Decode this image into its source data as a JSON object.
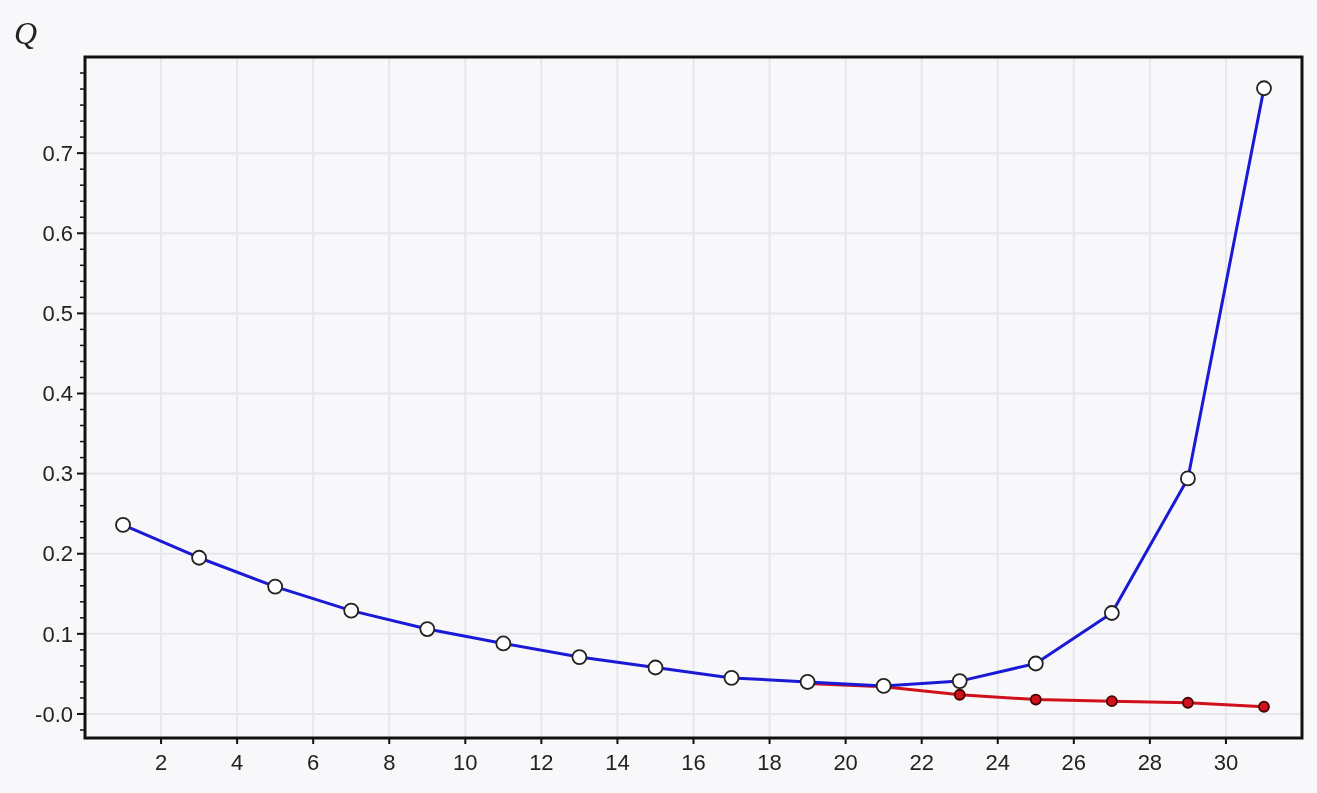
{
  "chart_data": {
    "type": "line",
    "ylabel": "Q",
    "xlim": [
      0,
      32
    ],
    "ylim": [
      -0.03,
      0.82
    ],
    "xticks": [
      2,
      4,
      6,
      8,
      10,
      12,
      14,
      16,
      18,
      20,
      22,
      24,
      26,
      28,
      30
    ],
    "yticks": [
      {
        "value": 0,
        "label": "-0.0"
      },
      0.1,
      0.2,
      0.3,
      0.4,
      0.5,
      0.6,
      0.7,
      {
        "value": -0.02,
        "label": null
      },
      {
        "value": 0.02,
        "label": null
      },
      {
        "value": 0.04,
        "label": null
      },
      {
        "value": 0.06,
        "label": null
      },
      {
        "value": 0.08,
        "label": null
      },
      {
        "value": 0.12,
        "label": null
      },
      {
        "value": 0.14,
        "label": null
      },
      {
        "value": 0.16,
        "label": null
      },
      {
        "value": 0.18,
        "label": null
      },
      {
        "value": 0.22,
        "label": null
      },
      {
        "value": 0.24,
        "label": null
      },
      {
        "value": 0.26,
        "label": null
      },
      {
        "value": 0.28,
        "label": null
      },
      {
        "value": 0.32,
        "label": null
      },
      {
        "value": 0.34,
        "label": null
      },
      {
        "value": 0.36,
        "label": null
      },
      {
        "value": 0.38,
        "label": null
      },
      {
        "value": 0.42,
        "label": null
      },
      {
        "value": 0.44,
        "label": null
      },
      {
        "value": 0.46,
        "label": null
      },
      {
        "value": 0.48,
        "label": null
      },
      {
        "value": 0.52,
        "label": null
      },
      {
        "value": 0.54,
        "label": null
      },
      {
        "value": 0.56,
        "label": null
      },
      {
        "value": 0.58,
        "label": null
      },
      {
        "value": 0.62,
        "label": null
      },
      {
        "value": 0.64,
        "label": null
      },
      {
        "value": 0.66,
        "label": null
      },
      {
        "value": 0.68,
        "label": null
      },
      {
        "value": 0.72,
        "label": null
      },
      {
        "value": 0.74,
        "label": null
      },
      {
        "value": 0.76,
        "label": null
      },
      {
        "value": 0.78,
        "label": null
      },
      {
        "value": 0.8,
        "label": null
      }
    ],
    "grid": true,
    "marker": "circle",
    "line_style": "solid",
    "series": [
      {
        "color": "#d0101a",
        "x": [
          19,
          21,
          23,
          25,
          27,
          29,
          31
        ],
        "values": [
          0.038,
          0.034,
          0.024,
          0.018,
          0.016,
          0.014,
          0.009
        ]
      },
      {
        "color": "#1a1ad6",
        "x": [
          1,
          3,
          5,
          7,
          9,
          11,
          13,
          15,
          17,
          19,
          21,
          23,
          25,
          27,
          29,
          31
        ],
        "values": [
          0.236,
          0.195,
          0.159,
          0.129,
          0.106,
          0.088,
          0.071,
          0.058,
          0.045,
          0.04,
          0.035,
          0.041,
          0.063,
          0.126,
          0.294,
          0.781
        ]
      }
    ]
  }
}
